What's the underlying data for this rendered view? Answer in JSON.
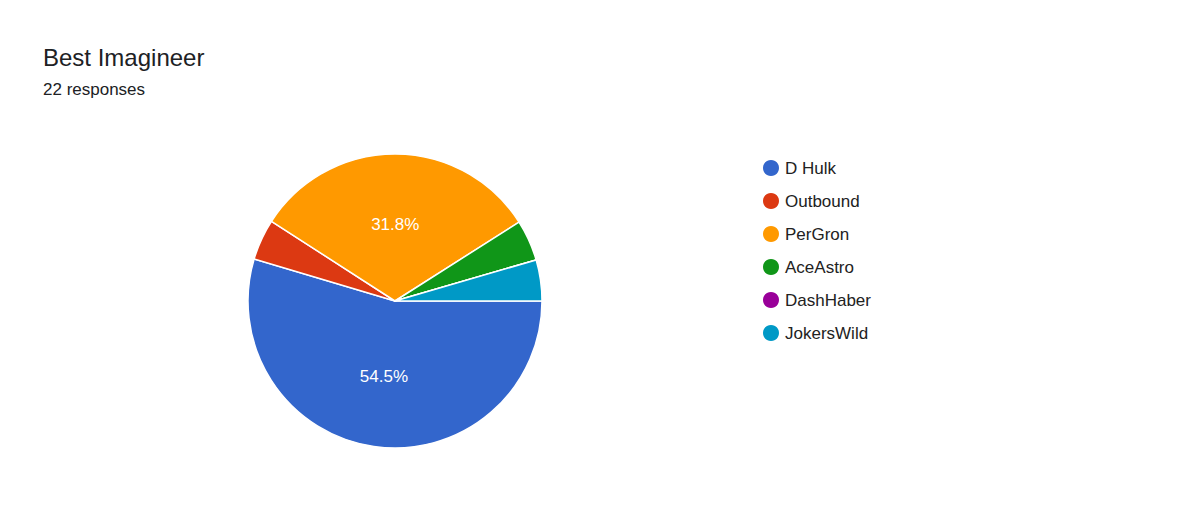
{
  "chart_data": {
    "type": "pie",
    "title": "Best Imagineer",
    "subtitle": "22 responses",
    "categories": [
      "D Hulk",
      "Outbound",
      "PerGron",
      "AceAstro",
      "DashHaber",
      "JokersWild"
    ],
    "values": [
      54.5,
      4.5,
      31.8,
      4.5,
      0,
      4.5
    ],
    "value_labels": [
      "54.5%",
      null,
      "31.8%",
      null,
      null,
      null
    ],
    "colors": [
      "#3366cc",
      "#dc3912",
      "#ff9900",
      "#109618",
      "#990099",
      "#0099c6"
    ],
    "data_labels": true,
    "legend": "right"
  }
}
